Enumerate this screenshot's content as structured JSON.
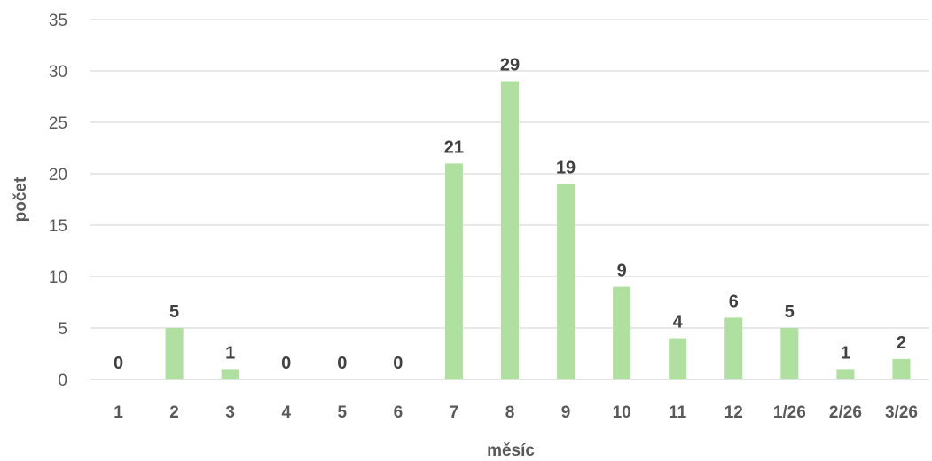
{
  "chart_data": {
    "type": "bar",
    "title": "",
    "xlabel": "měsíc",
    "ylabel": "počet",
    "ylim": [
      0,
      35
    ],
    "yticks": [
      0,
      5,
      10,
      15,
      20,
      25,
      30,
      35
    ],
    "grid": true,
    "legend": "none",
    "bar_color": "#b0e0a0",
    "categories": [
      "1",
      "2",
      "3",
      "4",
      "5",
      "6",
      "7",
      "8",
      "9",
      "10",
      "11",
      "12",
      "1/26",
      "2/26",
      "3/26"
    ],
    "values": [
      0,
      5,
      1,
      0,
      0,
      0,
      21,
      29,
      19,
      9,
      4,
      6,
      5,
      1,
      2
    ],
    "data_labels": [
      "0",
      "5",
      "1",
      "0",
      "0",
      "0",
      "21",
      "29",
      "19",
      "9",
      "4",
      "6",
      "5",
      "1",
      "2"
    ]
  }
}
